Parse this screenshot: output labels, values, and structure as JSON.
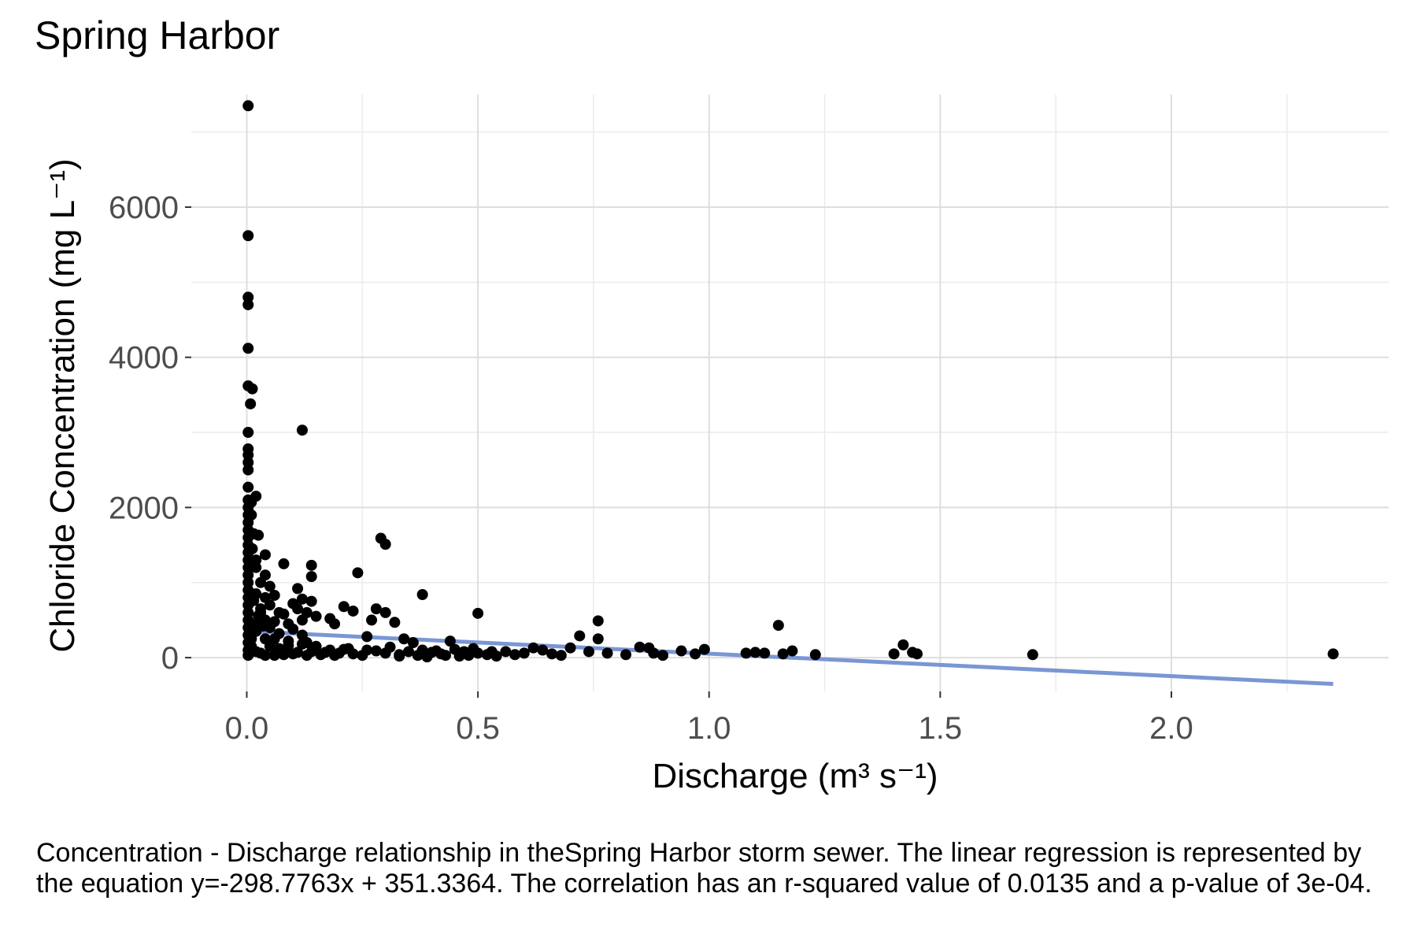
{
  "chart_data": {
    "type": "scatter",
    "title": "Spring Harbor",
    "xlabel": "Discharge (m³ s⁻¹)",
    "ylabel": "Chloride Concentration (mg L⁻¹)",
    "xlim": [
      -0.12,
      2.47
    ],
    "ylim": [
      -450,
      7500
    ],
    "x_ticks": [
      0.0,
      0.5,
      1.0,
      1.5,
      2.0
    ],
    "x_tick_labels": [
      "0.0",
      "0.5",
      "1.0",
      "1.5",
      "2.0"
    ],
    "y_ticks": [
      0,
      2000,
      4000,
      6000
    ],
    "y_tick_labels": [
      "0",
      "2000",
      "4000",
      "6000"
    ],
    "grid": true,
    "legend": "none",
    "point_color": "#000000",
    "line_color": "#7a96d4",
    "regression": {
      "slope": -298.7763,
      "intercept": 351.3364,
      "x_start": 0.0,
      "x_end": 2.35
    },
    "points": [
      [
        0.003,
        7350
      ],
      [
        0.003,
        5620
      ],
      [
        0.003,
        4800
      ],
      [
        0.003,
        4700
      ],
      [
        0.003,
        4120
      ],
      [
        0.003,
        3620
      ],
      [
        0.012,
        3580
      ],
      [
        0.008,
        3380
      ],
      [
        0.003,
        3000
      ],
      [
        0.003,
        2780
      ],
      [
        0.003,
        2700
      ],
      [
        0.003,
        2600
      ],
      [
        0.003,
        2500
      ],
      [
        0.003,
        2270
      ],
      [
        0.003,
        2100
      ],
      [
        0.003,
        2000
      ],
      [
        0.003,
        1900
      ],
      [
        0.003,
        1800
      ],
      [
        0.003,
        1700
      ],
      [
        0.003,
        1600
      ],
      [
        0.003,
        1500
      ],
      [
        0.003,
        1400
      ],
      [
        0.003,
        1300
      ],
      [
        0.003,
        1200
      ],
      [
        0.003,
        1100
      ],
      [
        0.003,
        1000
      ],
      [
        0.003,
        900
      ],
      [
        0.003,
        800
      ],
      [
        0.003,
        700
      ],
      [
        0.003,
        600
      ],
      [
        0.003,
        500
      ],
      [
        0.003,
        400
      ],
      [
        0.003,
        300
      ],
      [
        0.003,
        200
      ],
      [
        0.003,
        100
      ],
      [
        0.003,
        30
      ],
      [
        0.01,
        2070
      ],
      [
        0.02,
        2150
      ],
      [
        0.01,
        1900
      ],
      [
        0.015,
        1650
      ],
      [
        0.025,
        1630
      ],
      [
        0.012,
        1450
      ],
      [
        0.02,
        1300
      ],
      [
        0.02,
        1200
      ],
      [
        0.04,
        1370
      ],
      [
        0.04,
        1100
      ],
      [
        0.03,
        1000
      ],
      [
        0.05,
        950
      ],
      [
        0.02,
        850
      ],
      [
        0.04,
        800
      ],
      [
        0.06,
        830
      ],
      [
        0.05,
        700
      ],
      [
        0.03,
        650
      ],
      [
        0.07,
        600
      ],
      [
        0.08,
        580
      ],
      [
        0.04,
        500
      ],
      [
        0.06,
        480
      ],
      [
        0.09,
        450
      ],
      [
        0.05,
        400
      ],
      [
        0.1,
        380
      ],
      [
        0.02,
        350
      ],
      [
        0.07,
        320
      ],
      [
        0.12,
        300
      ],
      [
        0.04,
        250
      ],
      [
        0.09,
        220
      ],
      [
        0.13,
        200
      ],
      [
        0.05,
        150
      ],
      [
        0.15,
        150
      ],
      [
        0.08,
        100
      ],
      [
        0.18,
        100
      ],
      [
        0.03,
        60
      ],
      [
        0.2,
        60
      ],
      [
        0.06,
        30
      ],
      [
        0.25,
        30
      ],
      [
        0.1,
        50
      ],
      [
        0.14,
        80
      ],
      [
        0.22,
        120
      ],
      [
        0.28,
        90
      ],
      [
        0.3,
        60
      ],
      [
        0.35,
        80
      ],
      [
        0.33,
        40
      ],
      [
        0.38,
        100
      ],
      [
        0.4,
        70
      ],
      [
        0.42,
        50
      ],
      [
        0.45,
        110
      ],
      [
        0.47,
        80
      ],
      [
        0.5,
        60
      ],
      [
        0.52,
        40
      ],
      [
        0.53,
        80
      ],
      [
        0.48,
        30
      ],
      [
        0.12,
        3030
      ],
      [
        0.08,
        1250
      ],
      [
        0.14,
        1230
      ],
      [
        0.14,
        1080
      ],
      [
        0.11,
        920
      ],
      [
        0.12,
        780
      ],
      [
        0.14,
        750
      ],
      [
        0.1,
        720
      ],
      [
        0.11,
        650
      ],
      [
        0.13,
        600
      ],
      [
        0.15,
        550
      ],
      [
        0.12,
        500
      ],
      [
        0.18,
        520
      ],
      [
        0.21,
        680
      ],
      [
        0.23,
        620
      ],
      [
        0.19,
        450
      ],
      [
        0.24,
        1130
      ],
      [
        0.29,
        1590
      ],
      [
        0.3,
        1510
      ],
      [
        0.38,
        840
      ],
      [
        0.28,
        650
      ],
      [
        0.3,
        600
      ],
      [
        0.27,
        500
      ],
      [
        0.32,
        470
      ],
      [
        0.26,
        280
      ],
      [
        0.34,
        250
      ],
      [
        0.36,
        200
      ],
      [
        0.44,
        220
      ],
      [
        0.5,
        590
      ],
      [
        0.7,
        130
      ],
      [
        0.64,
        100
      ],
      [
        0.66,
        50
      ],
      [
        0.68,
        30
      ],
      [
        0.72,
        290
      ],
      [
        0.76,
        490
      ],
      [
        0.76,
        250
      ],
      [
        0.74,
        80
      ],
      [
        0.78,
        60
      ],
      [
        0.82,
        40
      ],
      [
        0.85,
        140
      ],
      [
        0.87,
        130
      ],
      [
        0.88,
        60
      ],
      [
        0.9,
        30
      ],
      [
        0.94,
        90
      ],
      [
        0.97,
        50
      ],
      [
        0.99,
        110
      ],
      [
        1.08,
        60
      ],
      [
        1.1,
        70
      ],
      [
        1.12,
        60
      ],
      [
        1.15,
        430
      ],
      [
        1.16,
        50
      ],
      [
        1.18,
        90
      ],
      [
        1.23,
        40
      ],
      [
        1.4,
        50
      ],
      [
        1.42,
        170
      ],
      [
        1.44,
        70
      ],
      [
        1.45,
        50
      ],
      [
        1.7,
        40
      ],
      [
        2.35,
        50
      ],
      [
        0.6,
        60
      ],
      [
        0.62,
        130
      ],
      [
        0.56,
        80
      ],
      [
        0.58,
        40
      ],
      [
        0.54,
        20
      ],
      [
        0.16,
        40
      ],
      [
        0.17,
        70
      ],
      [
        0.19,
        30
      ],
      [
        0.21,
        110
      ],
      [
        0.23,
        50
      ],
      [
        0.26,
        100
      ],
      [
        0.31,
        140
      ],
      [
        0.33,
        20
      ],
      [
        0.37,
        30
      ],
      [
        0.39,
        10
      ],
      [
        0.41,
        90
      ],
      [
        0.43,
        30
      ],
      [
        0.46,
        20
      ],
      [
        0.49,
        120
      ],
      [
        0.01,
        250
      ],
      [
        0.02,
        450
      ],
      [
        0.03,
        600
      ],
      [
        0.01,
        150
      ],
      [
        0.02,
        80
      ],
      [
        0.04,
        30
      ],
      [
        0.05,
        200
      ],
      [
        0.06,
        250
      ],
      [
        0.07,
        120
      ],
      [
        0.08,
        40
      ],
      [
        0.09,
        160
      ],
      [
        0.11,
        70
      ],
      [
        0.12,
        180
      ],
      [
        0.13,
        30
      ],
      [
        0.015,
        760
      ],
      [
        0.025,
        560
      ],
      [
        0.035,
        420
      ]
    ]
  },
  "caption": "Concentration - Discharge relationship in theSpring Harbor storm sewer. The linear regression is represented by the equation y=-298.7763x + 351.3364. The correlation has an r-squared value of 0.0135 and a p-value of 3e-04."
}
